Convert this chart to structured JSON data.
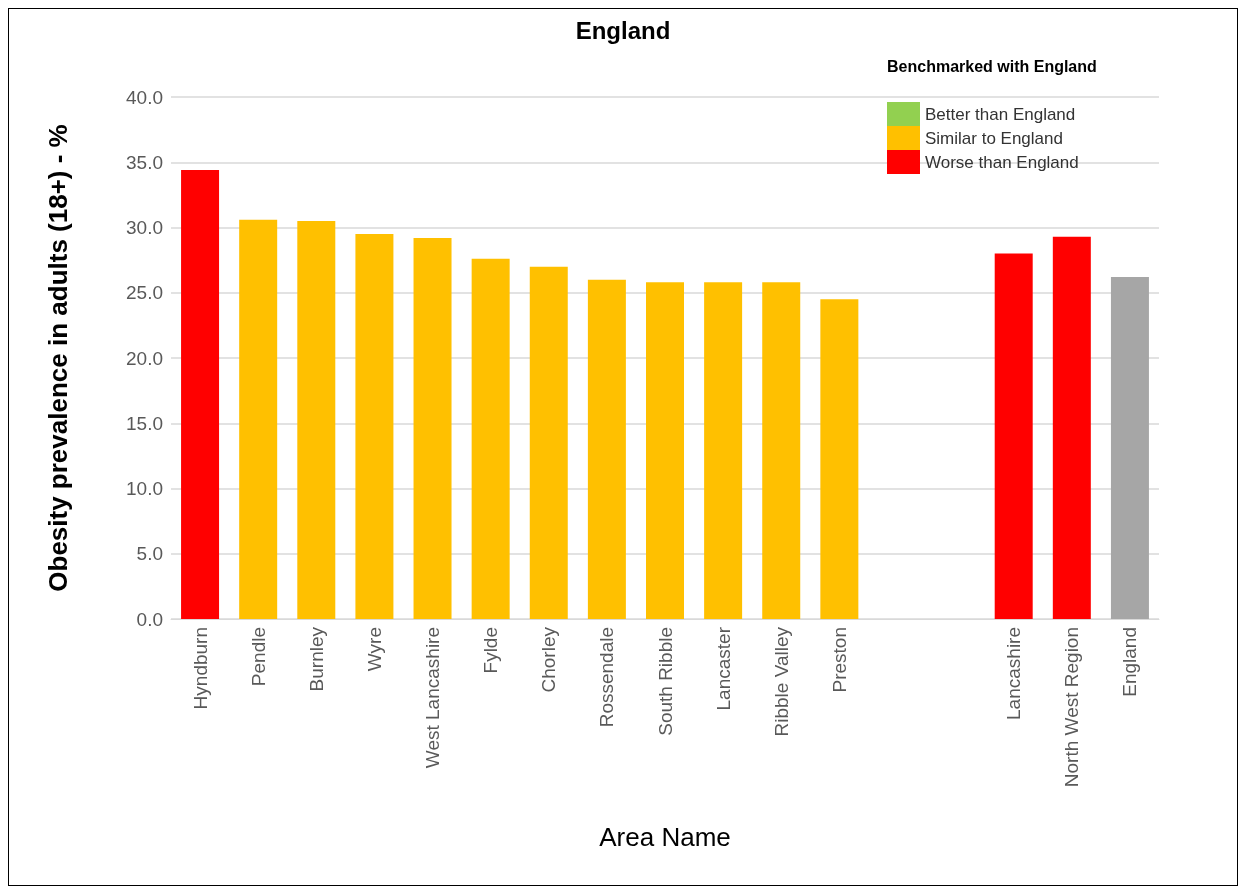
{
  "chart_data": {
    "type": "bar",
    "title": "England",
    "xlabel": "Area Name",
    "ylabel": "Obesity prevalence in adults (18+) - %",
    "legend_title": "Benchmarked with England",
    "categories": [
      "Hyndburn",
      "Pendle",
      "Burnley",
      "Wyre",
      "West Lancashire",
      "Fylde",
      "Chorley",
      "Rossendale",
      "South Ribble",
      "Lancaster",
      "Ribble Valley",
      "Preston",
      null,
      null,
      "Lancashire",
      "North West Region",
      "England"
    ],
    "stacked": true,
    "series": [
      {
        "name": "Better than England",
        "color": "#92d050",
        "values": [
          null,
          null,
          null,
          null,
          null,
          null,
          null,
          null,
          null,
          null,
          null,
          null,
          null,
          null,
          null,
          null,
          null
        ]
      },
      {
        "name": "Similar to England",
        "color": "#ffc000",
        "values": [
          null,
          30.6,
          30.5,
          29.5,
          29.2,
          27.6,
          27.0,
          26.0,
          25.8,
          25.8,
          25.8,
          24.5,
          null,
          null,
          null,
          null,
          null
        ]
      },
      {
        "name": "Worse than England",
        "color": "#ff0000",
        "values": [
          34.4,
          null,
          null,
          null,
          null,
          null,
          null,
          null,
          null,
          null,
          null,
          null,
          null,
          null,
          28.0,
          29.3,
          null
        ]
      },
      {
        "color": "#a6a6a6",
        "values": [
          null,
          null,
          null,
          null,
          null,
          null,
          null,
          null,
          null,
          null,
          null,
          null,
          null,
          null,
          null,
          null,
          26.2
        ]
      }
    ],
    "ylim": [
      0,
      40
    ],
    "yticks": [
      {
        "value": 0,
        "label": "0.0"
      },
      {
        "value": 5,
        "label": "5.0"
      },
      {
        "value": 10,
        "label": "10.0"
      },
      {
        "value": 15,
        "label": "15.0"
      },
      {
        "value": 20,
        "label": "20.0"
      },
      {
        "value": 25,
        "label": "25.0"
      },
      {
        "value": 30,
        "label": "30.0"
      },
      {
        "value": 35,
        "label": "35.0"
      },
      {
        "value": 40,
        "label": "40.0"
      }
    ],
    "grid": "y",
    "legend": "top right"
  }
}
